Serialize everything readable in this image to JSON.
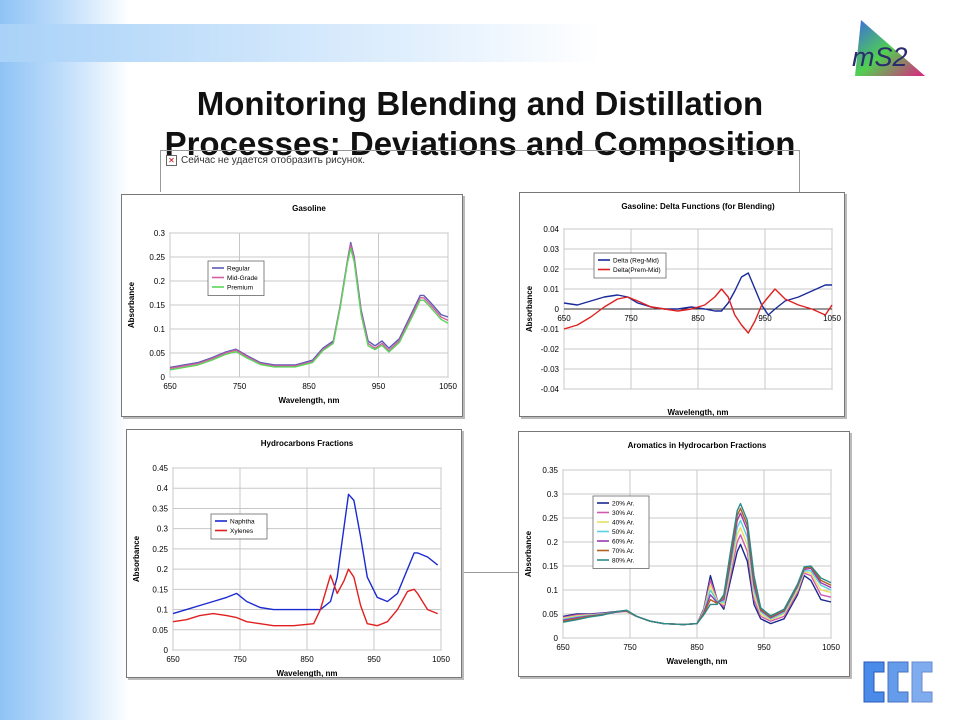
{
  "slide": {
    "title_line1": "Monitoring Blending and Distillation",
    "title_line2": "Processes: Deviations and Composition",
    "logo_text": "mS2",
    "broken_image_text": "Сейчас не удается отобразить рисунок."
  },
  "colors": {
    "accent_blue": "#8fc3f5",
    "corner_logo": "#3a7bd5"
  },
  "chart_data": [
    {
      "id": "gasoline",
      "type": "line",
      "title": "Gasoline",
      "xlabel": "Wavelength, nm",
      "ylabel": "Absorbance",
      "xlim": [
        650,
        1050
      ],
      "ylim": [
        0,
        0.3
      ],
      "xticks": [
        650,
        750,
        850,
        950,
        1050
      ],
      "yticks": [
        0,
        0.05,
        0.1,
        0.15,
        0.2,
        0.25,
        0.3
      ],
      "ytick_labels": [
        "0",
        "0.05",
        "0.1",
        "0.15",
        "0.2",
        "0.25",
        "0.3"
      ],
      "grid": true,
      "legend_position": "upper-left",
      "x": [
        650,
        670,
        690,
        710,
        730,
        745,
        760,
        780,
        800,
        830,
        855,
        870,
        885,
        895,
        905,
        910,
        915,
        925,
        935,
        945,
        955,
        965,
        980,
        1000,
        1010,
        1015,
        1025,
        1040,
        1050
      ],
      "series": [
        {
          "name": "Regular",
          "color": "#5b5bb5",
          "values": [
            0.02,
            0.025,
            0.03,
            0.04,
            0.052,
            0.058,
            0.045,
            0.03,
            0.025,
            0.025,
            0.035,
            0.06,
            0.075,
            0.15,
            0.24,
            0.28,
            0.25,
            0.14,
            0.075,
            0.065,
            0.075,
            0.06,
            0.08,
            0.14,
            0.17,
            0.17,
            0.155,
            0.13,
            0.125
          ]
        },
        {
          "name": "Mid-Grade",
          "color": "#d45fa0",
          "values": [
            0.018,
            0.023,
            0.028,
            0.038,
            0.05,
            0.056,
            0.043,
            0.028,
            0.023,
            0.023,
            0.032,
            0.057,
            0.072,
            0.148,
            0.238,
            0.275,
            0.245,
            0.135,
            0.07,
            0.06,
            0.07,
            0.055,
            0.076,
            0.135,
            0.165,
            0.165,
            0.15,
            0.125,
            0.118
          ]
        },
        {
          "name": "Premium",
          "color": "#5ad65a",
          "values": [
            0.015,
            0.02,
            0.025,
            0.035,
            0.047,
            0.053,
            0.04,
            0.026,
            0.021,
            0.021,
            0.03,
            0.055,
            0.07,
            0.145,
            0.235,
            0.268,
            0.24,
            0.13,
            0.065,
            0.057,
            0.066,
            0.052,
            0.072,
            0.13,
            0.16,
            0.16,
            0.145,
            0.12,
            0.112
          ]
        }
      ]
    },
    {
      "id": "delta",
      "type": "line",
      "title": "Gasoline: Delta Functions (for Blending)",
      "xlabel": "Wavelength, nm",
      "ylabel": "Absorbance",
      "xlim": [
        650,
        1050
      ],
      "ylim": [
        -0.04,
        0.04
      ],
      "xticks": [
        650,
        750,
        850,
        950,
        1050
      ],
      "yticks": [
        -0.04,
        -0.03,
        -0.02,
        -0.01,
        0,
        0.01,
        0.02,
        0.03,
        0.04
      ],
      "ytick_labels": [
        "-0.04",
        "-0.03",
        "-0.02",
        "-0.01",
        "0",
        "0.01",
        "0.02",
        "0.03",
        "0.04"
      ],
      "grid": true,
      "legend_position": "upper-left",
      "x": [
        650,
        670,
        690,
        710,
        730,
        745,
        760,
        780,
        800,
        820,
        840,
        860,
        875,
        885,
        895,
        905,
        915,
        925,
        935,
        945,
        955,
        965,
        980,
        1000,
        1020,
        1040,
        1050
      ],
      "series": [
        {
          "name": "Delta (Reg-Mid)",
          "color": "#1a2a9c",
          "values": [
            0.003,
            0.002,
            0.004,
            0.006,
            0.007,
            0.006,
            0.003,
            0.001,
            0.0,
            0.0,
            0.001,
            0.0,
            -0.001,
            -0.001,
            0.003,
            0.009,
            0.016,
            0.018,
            0.01,
            0.002,
            -0.003,
            0.0,
            0.004,
            0.006,
            0.009,
            0.012,
            0.012
          ]
        },
        {
          "name": "Delta(Prem-Mid)",
          "color": "#e02020",
          "values": [
            -0.01,
            -0.008,
            -0.004,
            0.001,
            0.005,
            0.006,
            0.004,
            0.001,
            0.0,
            -0.001,
            0.0,
            0.002,
            0.006,
            0.01,
            0.006,
            -0.003,
            -0.008,
            -0.012,
            -0.006,
            0.002,
            0.006,
            0.01,
            0.005,
            0.002,
            0.0,
            -0.003,
            0.002
          ]
        }
      ]
    },
    {
      "id": "hydrocarbons",
      "type": "line",
      "title": "Hydrocarbons Fractions",
      "xlabel": "Wavelength, nm",
      "ylabel": "Absorbance",
      "xlim": [
        650,
        1050
      ],
      "ylim": [
        0,
        0.45
      ],
      "xticks": [
        650,
        750,
        850,
        950,
        1050
      ],
      "yticks": [
        0,
        0.05,
        0.1,
        0.15,
        0.2,
        0.25,
        0.3,
        0.35,
        0.4,
        0.45
      ],
      "ytick_labels": [
        "0",
        "0.05",
        "0.1",
        "0.15",
        "0.2",
        "0.25",
        "0.3",
        "0.35",
        "0.4",
        "0.45"
      ],
      "grid": true,
      "legend_position": "upper-left",
      "x": [
        650,
        670,
        690,
        710,
        730,
        745,
        760,
        780,
        800,
        830,
        860,
        870,
        885,
        895,
        905,
        912,
        920,
        930,
        940,
        955,
        970,
        985,
        1000,
        1010,
        1015,
        1030,
        1045
      ],
      "series": [
        {
          "name": "Naphtha",
          "color": "#1a2ad0",
          "values": [
            0.09,
            0.1,
            0.11,
            0.12,
            0.13,
            0.14,
            0.12,
            0.105,
            0.1,
            0.1,
            0.1,
            0.1,
            0.12,
            0.18,
            0.3,
            0.385,
            0.37,
            0.28,
            0.18,
            0.13,
            0.12,
            0.14,
            0.2,
            0.24,
            0.24,
            0.23,
            0.21
          ]
        },
        {
          "name": "Xylenes",
          "color": "#e02020",
          "values": [
            0.07,
            0.075,
            0.085,
            0.09,
            0.085,
            0.08,
            0.07,
            0.065,
            0.06,
            0.06,
            0.065,
            0.1,
            0.185,
            0.14,
            0.17,
            0.2,
            0.18,
            0.11,
            0.065,
            0.06,
            0.07,
            0.1,
            0.145,
            0.15,
            0.14,
            0.1,
            0.09
          ]
        }
      ]
    },
    {
      "id": "aromatics",
      "type": "line",
      "title": "Aromatics in Hydrocarbon Fractions",
      "xlabel": "Wavelength, nm",
      "ylabel": "Absorbance",
      "xlim": [
        650,
        1050
      ],
      "ylim": [
        0,
        0.35
      ],
      "xticks": [
        650,
        750,
        850,
        950,
        1050
      ],
      "yticks": [
        0,
        0.05,
        0.1,
        0.15,
        0.2,
        0.25,
        0.3,
        0.35
      ],
      "ytick_labels": [
        "0",
        "0.05",
        "0.1",
        "0.15",
        "0.2",
        "0.25",
        "0.3",
        "0.35"
      ],
      "grid": true,
      "legend_position": "left",
      "x": [
        650,
        670,
        690,
        710,
        730,
        745,
        760,
        780,
        800,
        830,
        850,
        860,
        870,
        880,
        890,
        900,
        910,
        915,
        925,
        935,
        945,
        960,
        980,
        1000,
        1010,
        1020,
        1035,
        1050
      ],
      "series": [
        {
          "name": "20% Ar.",
          "color": "#1a2a8c",
          "values": [
            0.045,
            0.05,
            0.05,
            0.052,
            0.055,
            0.055,
            0.045,
            0.035,
            0.03,
            0.028,
            0.03,
            0.06,
            0.13,
            0.08,
            0.06,
            0.12,
            0.18,
            0.195,
            0.16,
            0.07,
            0.04,
            0.03,
            0.04,
            0.09,
            0.13,
            0.12,
            0.08,
            0.075
          ]
        },
        {
          "name": "30% Ar.",
          "color": "#d05ab0",
          "values": [
            0.043,
            0.048,
            0.049,
            0.051,
            0.054,
            0.055,
            0.045,
            0.035,
            0.03,
            0.028,
            0.03,
            0.058,
            0.12,
            0.08,
            0.065,
            0.13,
            0.2,
            0.215,
            0.18,
            0.08,
            0.045,
            0.035,
            0.045,
            0.095,
            0.135,
            0.13,
            0.09,
            0.085
          ]
        },
        {
          "name": "40% Ar.",
          "color": "#e8e060",
          "values": [
            0.041,
            0.046,
            0.048,
            0.05,
            0.054,
            0.055,
            0.045,
            0.035,
            0.03,
            0.028,
            0.03,
            0.056,
            0.11,
            0.078,
            0.07,
            0.14,
            0.215,
            0.23,
            0.195,
            0.09,
            0.05,
            0.038,
            0.05,
            0.1,
            0.138,
            0.135,
            0.1,
            0.095
          ]
        },
        {
          "name": "50% Ar.",
          "color": "#5ad0e0",
          "values": [
            0.039,
            0.044,
            0.047,
            0.05,
            0.054,
            0.056,
            0.045,
            0.035,
            0.03,
            0.028,
            0.03,
            0.054,
            0.1,
            0.076,
            0.075,
            0.15,
            0.23,
            0.245,
            0.21,
            0.1,
            0.055,
            0.04,
            0.053,
            0.105,
            0.14,
            0.14,
            0.11,
            0.1
          ]
        },
        {
          "name": "60% Ar.",
          "color": "#9a3ab0",
          "values": [
            0.037,
            0.042,
            0.046,
            0.049,
            0.054,
            0.056,
            0.045,
            0.035,
            0.03,
            0.028,
            0.03,
            0.052,
            0.09,
            0.074,
            0.08,
            0.16,
            0.245,
            0.26,
            0.225,
            0.11,
            0.058,
            0.042,
            0.056,
            0.108,
            0.143,
            0.145,
            0.115,
            0.105
          ]
        },
        {
          "name": "70% Ar.",
          "color": "#b06020",
          "values": [
            0.035,
            0.04,
            0.045,
            0.049,
            0.055,
            0.057,
            0.045,
            0.035,
            0.03,
            0.028,
            0.03,
            0.05,
            0.08,
            0.072,
            0.085,
            0.17,
            0.255,
            0.27,
            0.235,
            0.12,
            0.06,
            0.044,
            0.058,
            0.11,
            0.146,
            0.148,
            0.12,
            0.11
          ]
        },
        {
          "name": "80% Ar.",
          "color": "#2a8a8a",
          "values": [
            0.033,
            0.038,
            0.044,
            0.048,
            0.055,
            0.058,
            0.045,
            0.035,
            0.03,
            0.028,
            0.03,
            0.048,
            0.07,
            0.07,
            0.09,
            0.18,
            0.265,
            0.28,
            0.245,
            0.13,
            0.063,
            0.046,
            0.06,
            0.112,
            0.148,
            0.15,
            0.125,
            0.115
          ]
        }
      ]
    }
  ]
}
